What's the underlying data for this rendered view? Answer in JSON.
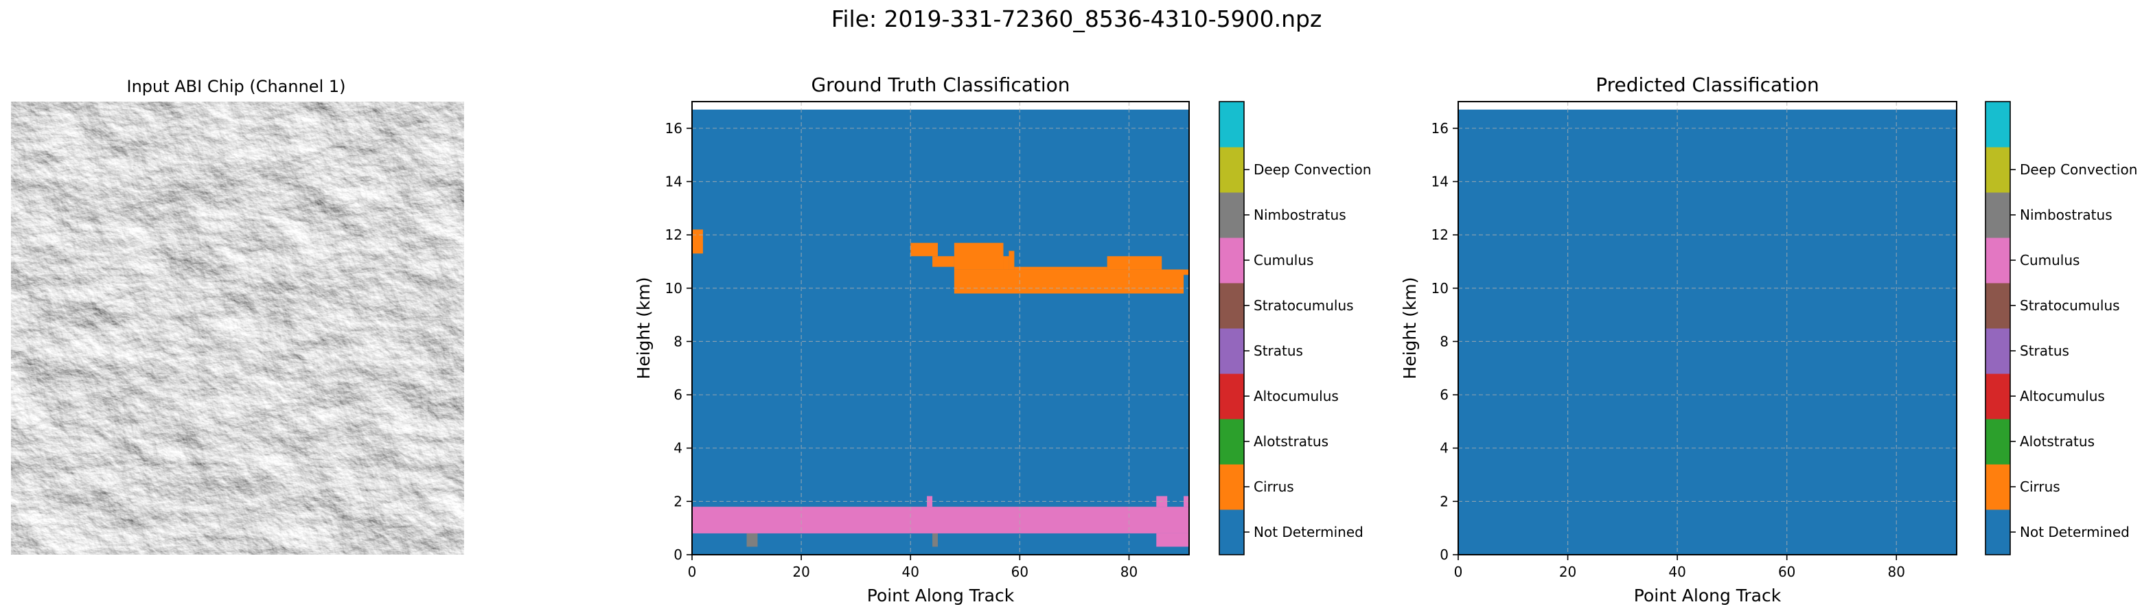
{
  "figure": {
    "title": "File: 2019-331-72360_8536-4310-5900.npz"
  },
  "input_chip": {
    "title": "Input ABI Chip (Channel 1)",
    "colormap": "grayscale"
  },
  "colors": {
    "not_determined": "#1f77b4",
    "cirrus": "#ff7f0e",
    "altostratus": "#2ca02c",
    "altocumulus": "#d62728",
    "stratus": "#9467bd",
    "stratocumulus": "#8c564b",
    "cumulus": "#e377c2",
    "nimbostratus": "#7f7f7f",
    "deep_convection": "#bcbd22",
    "top": "#17becf",
    "grid": "#b0b0b0"
  },
  "colorbar": {
    "labels": [
      "Not Determined",
      "Cirrus",
      "Alotstratus",
      "Altocumulus",
      "Stratus",
      "Stratocumulus",
      "Cumulus",
      "Nimbostratus",
      "Deep Convection"
    ],
    "colors": [
      "#1f77b4",
      "#ff7f0e",
      "#2ca02c",
      "#d62728",
      "#9467bd",
      "#8c564b",
      "#e377c2",
      "#7f7f7f",
      "#bcbd22",
      "#17becf"
    ]
  },
  "chart_data": [
    {
      "type": "heatmap",
      "title": "Ground Truth Classification",
      "xlabel": "Point Along Track",
      "ylabel": "Height (km)",
      "xlim": [
        0,
        91
      ],
      "ylim": [
        0,
        17
      ],
      "xticks": [
        0,
        20,
        40,
        60,
        80
      ],
      "yticks": [
        0,
        2,
        4,
        6,
        8,
        10,
        12,
        14,
        16
      ],
      "grid": true,
      "data_top_km": 16.7,
      "background_class": "Not Determined",
      "regions": [
        {
          "class": "Cirrus",
          "x": [
            0,
            2
          ],
          "y": [
            11.3,
            12.2
          ]
        },
        {
          "class": "Cirrus",
          "x": [
            40,
            45
          ],
          "y": [
            11.2,
            11.7
          ]
        },
        {
          "class": "Cirrus",
          "x": [
            44,
            48
          ],
          "y": [
            10.8,
            11.2
          ]
        },
        {
          "class": "Cirrus",
          "x": [
            48,
            57
          ],
          "y": [
            10.7,
            11.7
          ]
        },
        {
          "class": "Cirrus",
          "x": [
            57,
            58
          ],
          "y": [
            10.7,
            11.2
          ]
        },
        {
          "class": "Cirrus",
          "x": [
            58,
            59
          ],
          "y": [
            10.7,
            11.4
          ]
        },
        {
          "class": "Cirrus",
          "x": [
            59,
            76
          ],
          "y": [
            10.7,
            10.8
          ]
        },
        {
          "class": "Cirrus",
          "x": [
            76,
            86
          ],
          "y": [
            10.7,
            11.2
          ]
        },
        {
          "class": "Cirrus",
          "x": [
            86,
            91
          ],
          "y": [
            10.5,
            10.7
          ]
        },
        {
          "class": "Cirrus",
          "x": [
            48,
            90
          ],
          "y": [
            9.8,
            10.7
          ]
        },
        {
          "class": "Cumulus",
          "x": [
            0,
            91
          ],
          "y": [
            0.8,
            1.8
          ]
        },
        {
          "class": "Cumulus",
          "x": [
            43,
            44
          ],
          "y": [
            1.8,
            2.2
          ]
        },
        {
          "class": "Cumulus",
          "x": [
            85,
            87
          ],
          "y": [
            1.8,
            2.2
          ]
        },
        {
          "class": "Cumulus",
          "x": [
            90,
            91
          ],
          "y": [
            1.8,
            2.2
          ]
        },
        {
          "class": "Cumulus",
          "x": [
            85,
            91
          ],
          "y": [
            0.3,
            0.8
          ]
        },
        {
          "class": "Nimbostratus",
          "x": [
            10,
            12
          ],
          "y": [
            0.3,
            0.8
          ]
        },
        {
          "class": "Nimbostratus",
          "x": [
            44,
            45
          ],
          "y": [
            0.3,
            0.8
          ]
        }
      ]
    },
    {
      "type": "heatmap",
      "title": "Predicted Classification",
      "xlabel": "Point Along Track",
      "ylabel": "Height (km)",
      "xlim": [
        0,
        91
      ],
      "ylim": [
        0,
        17
      ],
      "xticks": [
        0,
        20,
        40,
        60,
        80
      ],
      "yticks": [
        0,
        2,
        4,
        6,
        8,
        10,
        12,
        14,
        16
      ],
      "grid": true,
      "data_top_km": 16.7,
      "background_class": "Not Determined",
      "regions": []
    }
  ]
}
